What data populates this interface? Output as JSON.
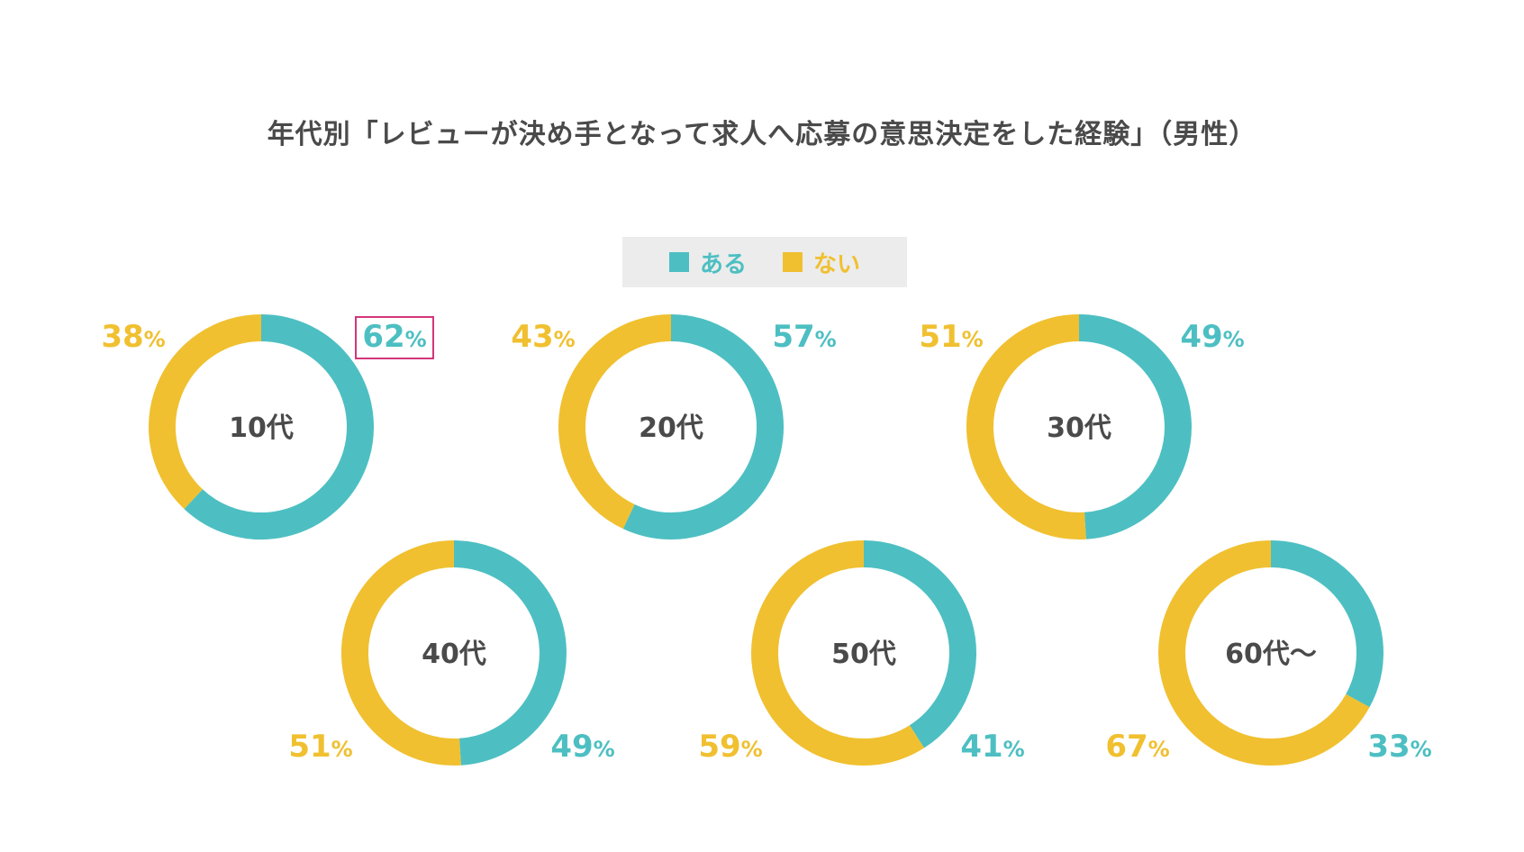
{
  "chart_data": {
    "type": "pie",
    "title": "年代別「レビューが決め手となって求人へ応募の意思決定をした経験」（男性）",
    "legend": [
      {
        "label": "ある",
        "color": "#4dbfc2"
      },
      {
        "label": "ない",
        "color": "#f0c030"
      }
    ],
    "legend_placement": "top-center",
    "percent_sign": "%",
    "charts": [
      {
        "label": "10代",
        "aru": 62,
        "nai": 38,
        "aru_text": "62",
        "nai_text": "38",
        "highlight": true
      },
      {
        "label": "20代",
        "aru": 57,
        "nai": 43,
        "aru_text": "57",
        "nai_text": "43"
      },
      {
        "label": "30代",
        "aru": 49,
        "nai": 51,
        "aru_text": "49",
        "nai_text": "51"
      },
      {
        "label": "40代",
        "aru": 49,
        "nai": 51,
        "aru_text": "49",
        "nai_text": "51"
      },
      {
        "label": "50代",
        "aru": 41,
        "nai": 59,
        "aru_text": "41",
        "nai_text": "59"
      },
      {
        "label": "60代～",
        "aru": 33,
        "nai": 67,
        "aru_text": "33",
        "nai_text": "67"
      }
    ],
    "colors": {
      "aru": "#4dbfc2",
      "nai": "#f0c030",
      "highlight_box": "#d4357a",
      "label_text": "#4a4a4a"
    }
  }
}
